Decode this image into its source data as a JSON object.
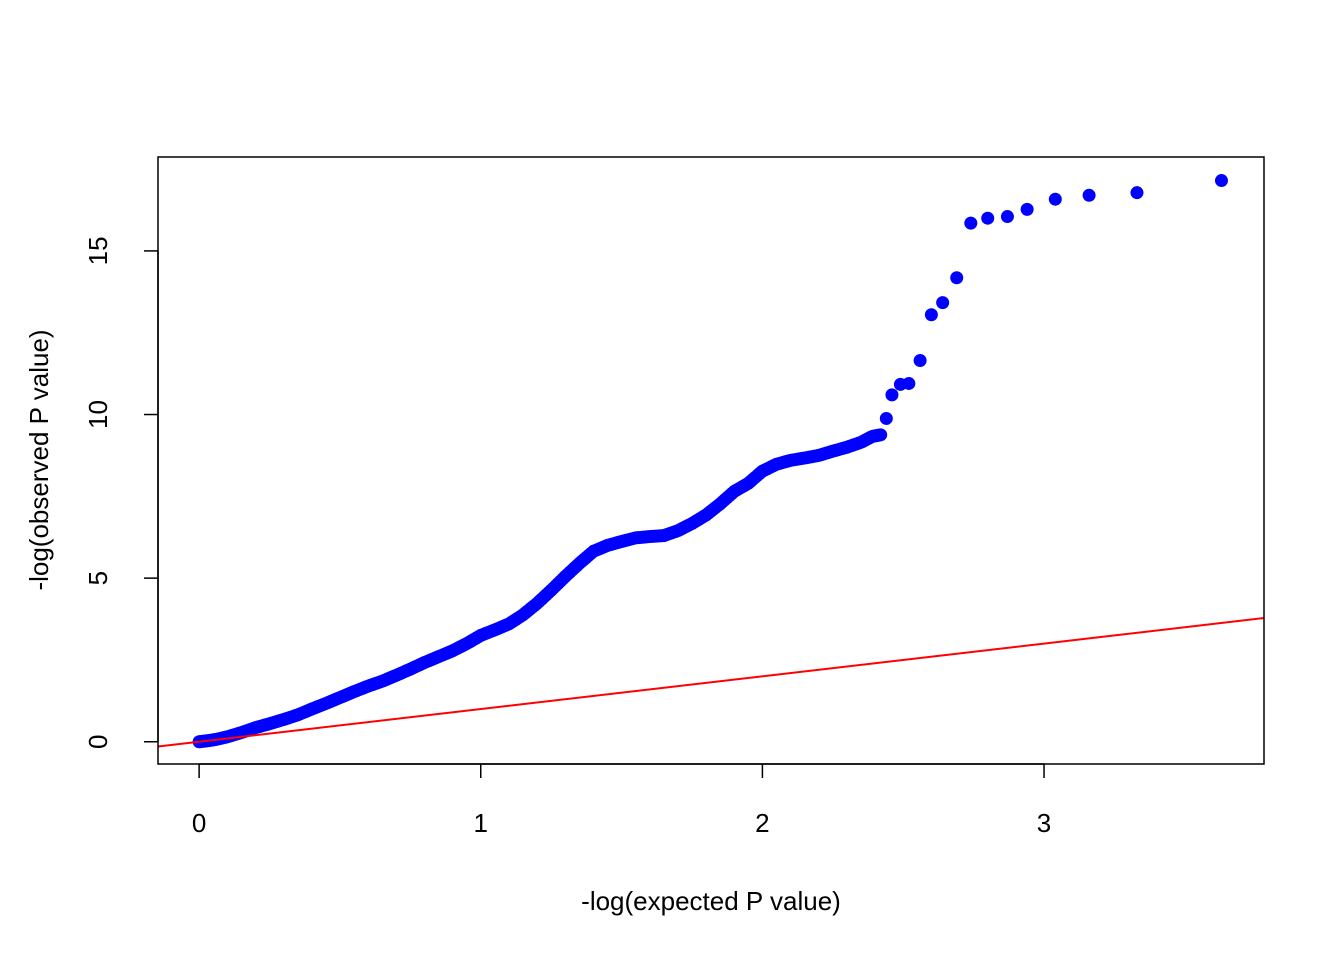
{
  "chart_data": {
    "type": "scatter",
    "title": "",
    "xlabel": "-log(expected P value)",
    "ylabel": "-log(observed P value)",
    "xlim": [
      -0.146,
      3.781
    ],
    "ylim": [
      -0.68,
      17.87
    ],
    "xticks": [
      "0",
      "1",
      "2",
      "3"
    ],
    "yticks": [
      "0",
      "5",
      "10",
      "15"
    ],
    "grid": false,
    "legend": "none",
    "point_color": "#0000ff",
    "line_color": "#ff0000",
    "reference_line": {
      "intercept": 0,
      "slope": 1
    },
    "series": [
      {
        "points": [
          [
            0.0,
            0.0
          ],
          [
            0.03,
            0.03
          ],
          [
            0.06,
            0.07
          ],
          [
            0.1,
            0.15
          ],
          [
            0.15,
            0.28
          ],
          [
            0.2,
            0.43
          ],
          [
            0.25,
            0.55
          ],
          [
            0.3,
            0.68
          ],
          [
            0.35,
            0.82
          ],
          [
            0.4,
            1.0
          ],
          [
            0.45,
            1.17
          ],
          [
            0.5,
            1.35
          ],
          [
            0.55,
            1.53
          ],
          [
            0.6,
            1.7
          ],
          [
            0.65,
            1.85
          ],
          [
            0.7,
            2.03
          ],
          [
            0.75,
            2.22
          ],
          [
            0.8,
            2.42
          ],
          [
            0.85,
            2.6
          ],
          [
            0.9,
            2.78
          ],
          [
            0.95,
            3.0
          ],
          [
            1.0,
            3.25
          ],
          [
            1.05,
            3.42
          ],
          [
            1.1,
            3.6
          ],
          [
            1.15,
            3.88
          ],
          [
            1.2,
            4.23
          ],
          [
            1.25,
            4.63
          ],
          [
            1.3,
            5.05
          ],
          [
            1.35,
            5.45
          ],
          [
            1.4,
            5.82
          ],
          [
            1.45,
            6.0
          ],
          [
            1.5,
            6.12
          ],
          [
            1.55,
            6.23
          ],
          [
            1.6,
            6.27
          ],
          [
            1.65,
            6.3
          ],
          [
            1.7,
            6.45
          ],
          [
            1.75,
            6.67
          ],
          [
            1.8,
            6.93
          ],
          [
            1.85,
            7.27
          ],
          [
            1.9,
            7.65
          ],
          [
            1.95,
            7.9
          ],
          [
            2.0,
            8.27
          ],
          [
            2.05,
            8.48
          ],
          [
            2.1,
            8.6
          ],
          [
            2.15,
            8.67
          ],
          [
            2.2,
            8.75
          ],
          [
            2.25,
            8.88
          ],
          [
            2.3,
            9.0
          ],
          [
            2.35,
            9.15
          ],
          [
            2.39,
            9.33
          ],
          [
            2.42,
            9.38
          ],
          [
            2.44,
            9.88
          ],
          [
            2.46,
            10.6
          ],
          [
            2.49,
            10.92
          ],
          [
            2.52,
            10.95
          ],
          [
            2.56,
            11.65
          ],
          [
            2.6,
            13.05
          ],
          [
            2.64,
            13.42
          ],
          [
            2.69,
            14.18
          ],
          [
            2.74,
            15.85
          ],
          [
            2.8,
            16.0
          ],
          [
            2.87,
            16.05
          ],
          [
            2.94,
            16.27
          ],
          [
            3.04,
            16.58
          ],
          [
            3.16,
            16.7
          ],
          [
            3.33,
            16.78
          ],
          [
            3.63,
            17.15
          ]
        ]
      }
    ]
  }
}
